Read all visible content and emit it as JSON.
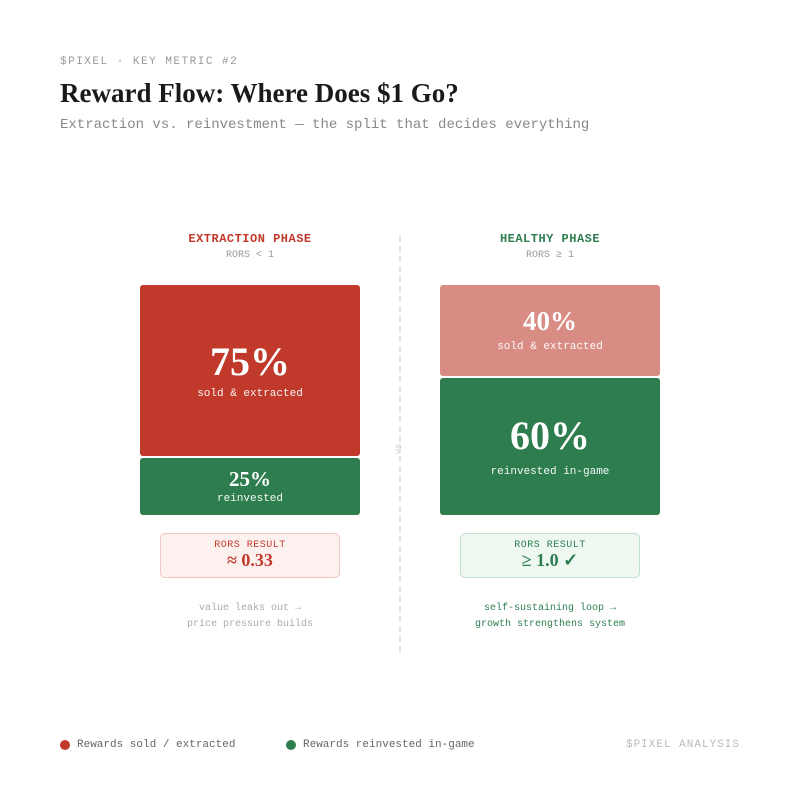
{
  "header": {
    "kicker": "$PIXEL · KEY METRIC #2",
    "title": "Reward Flow: Where Does $1 Go?",
    "subtitle": "Extraction vs. reinvestment — the split that decides everything"
  },
  "colors": {
    "extracted": "#c0392b",
    "extracted_light": "#d98c84",
    "reinvested": "#2e7d4f",
    "result_red_bg": "#fdf1f0",
    "result_green_bg": "#eef8f1"
  },
  "divider_label": "vs",
  "chart_data": {
    "type": "bar",
    "stacked": true,
    "unit": "%",
    "categories": [
      "EXTRACTION PHASE",
      "HEALTHY PHASE"
    ],
    "series": [
      {
        "name": "Rewards sold / extracted",
        "values": [
          75,
          40
        ]
      },
      {
        "name": "Rewards reinvested in-game",
        "values": [
          25,
          60
        ]
      }
    ],
    "ylim": [
      0,
      100
    ],
    "grid": false,
    "legend_position": "bottom-left"
  },
  "phases": {
    "extraction": {
      "title": "EXTRACTION PHASE",
      "condition": "RORS < 1",
      "top_pct": "75%",
      "top_caption": "sold & extracted",
      "bottom_pct": "25%",
      "bottom_caption": "reinvested",
      "result_label": "RORS RESULT",
      "result_value": "≈ 0.33",
      "note_line1": "value leaks out →",
      "note_line2": "price pressure builds"
    },
    "healthy": {
      "title": "HEALTHY PHASE",
      "condition": "RORS ≥ 1",
      "top_pct": "40%",
      "top_caption": "sold & extracted",
      "bottom_pct": "60%",
      "bottom_caption": "reinvested in-game",
      "result_label": "RORS RESULT",
      "result_value": "≥ 1.0 ✓",
      "note_line1": "self-sustaining loop →",
      "note_line2": "growth strengthens system"
    }
  },
  "legend": {
    "extracted_label": "Rewards sold / extracted",
    "reinvested_label": "Rewards reinvested in-game"
  },
  "credit": "$PIXEL ANALYSIS"
}
